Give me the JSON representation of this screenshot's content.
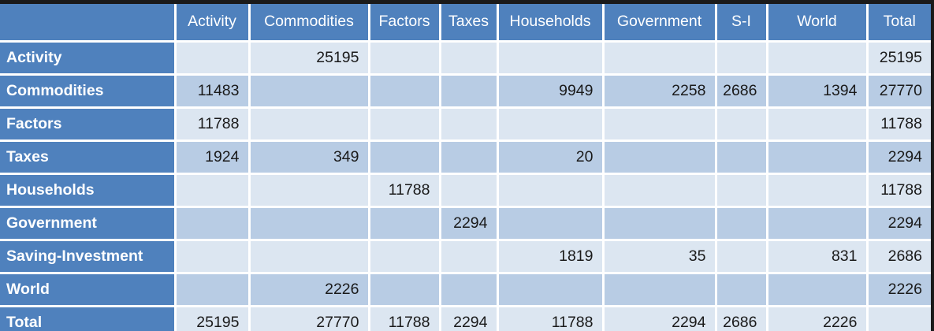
{
  "colors": {
    "accent_blue": "#4f81bd",
    "band_light": "#dce6f1",
    "band_dark": "#b8cce4",
    "frame_dark": "#1a1a1a",
    "grid_white": "#ffffff",
    "value_text": "#1a1a1a"
  },
  "chart_data": {
    "type": "table",
    "description": "Social accounting matrix style table; row and column totals shown, empty cells where no flow exists",
    "columns": [
      "",
      "Activity",
      "Commodities",
      "Factors",
      "Taxes",
      "Households",
      "Government",
      "S-I",
      "World",
      "Total"
    ],
    "rows": [
      {
        "label": "Activity",
        "values": [
          "",
          "25195",
          "",
          "",
          "",
          "",
          "",
          "",
          "25195"
        ]
      },
      {
        "label": "Commodities",
        "values": [
          "11483",
          "",
          "",
          "",
          "9949",
          "2258",
          "2686",
          "1394",
          "27770"
        ]
      },
      {
        "label": "Factors",
        "values": [
          "11788",
          "",
          "",
          "",
          "",
          "",
          "",
          "",
          "11788"
        ]
      },
      {
        "label": "Taxes",
        "values": [
          "1924",
          "349",
          "",
          "",
          "20",
          "",
          "",
          "",
          "2294"
        ]
      },
      {
        "label": "Households",
        "values": [
          "",
          "",
          "11788",
          "",
          "",
          "",
          "",
          "",
          "11788"
        ]
      },
      {
        "label": "Government",
        "values": [
          "",
          "",
          "",
          "2294",
          "",
          "",
          "",
          "",
          "2294"
        ]
      },
      {
        "label": "Saving-Investment",
        "values": [
          "",
          "",
          "",
          "",
          "1819",
          "35",
          "",
          "831",
          "2686"
        ]
      },
      {
        "label": "World",
        "values": [
          "",
          "2226",
          "",
          "",
          "",
          "",
          "",
          "",
          "2226"
        ]
      },
      {
        "label": "Total",
        "values": [
          "25195",
          "27770",
          "11788",
          "2294",
          "11788",
          "2294",
          "2686",
          "2226",
          ""
        ]
      }
    ]
  }
}
